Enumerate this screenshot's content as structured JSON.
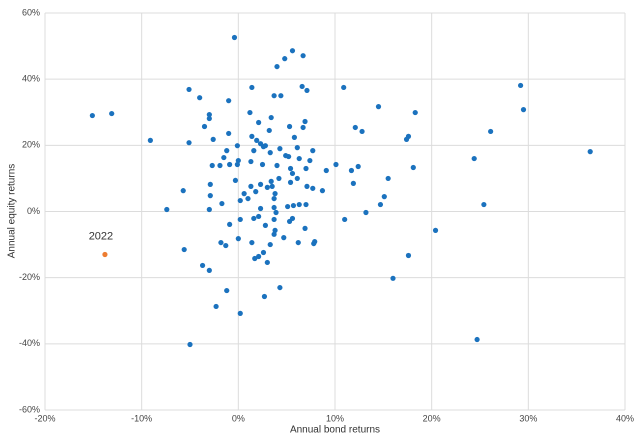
{
  "chart_data": {
    "type": "scatter",
    "x_label": "Annual bond returns",
    "y_label": "Annual equity returns",
    "xlim": [
      -20,
      40
    ],
    "ylim": [
      -60,
      60
    ],
    "xticks": [
      {
        "value": -20,
        "label": "-20%"
      },
      {
        "value": -10,
        "label": "-10%"
      },
      {
        "value": 0,
        "label": "0%"
      },
      {
        "value": 10,
        "label": "10%"
      },
      {
        "value": 20,
        "label": "20%"
      },
      {
        "value": 30,
        "label": "30%"
      },
      {
        "value": 40,
        "label": "40%"
      }
    ],
    "yticks": [
      {
        "value": -60,
        "label": "-60%"
      },
      {
        "value": -40,
        "label": "-40%"
      },
      {
        "value": -20,
        "label": "-20%"
      },
      {
        "value": 0,
        "label": "0%"
      },
      {
        "value": 20,
        "label": "20%"
      },
      {
        "value": 40,
        "label": "40%"
      },
      {
        "value": 60,
        "label": "60%"
      }
    ],
    "grid": true,
    "series": [
      {
        "color": "#1b72be",
        "x": [
          -15.1,
          -13.1,
          -9.1,
          -7.4,
          -5.6,
          -5.7,
          -5.1,
          -5.1,
          -5.0,
          -0.4,
          5.6,
          6.7,
          4.8,
          4.0,
          10.9,
          6.6,
          7.1,
          1.4,
          4.4,
          3.7,
          -4.0,
          -1.0,
          14.5,
          29.2,
          29.5,
          18.3,
          1.2,
          -3.0,
          -3.0,
          3.4,
          2.1,
          6.9,
          6.7,
          5.3,
          -3.5,
          12.1,
          12.8,
          26.1,
          3.2,
          -1.0,
          1.4,
          1.9,
          -2.6,
          5.8,
          17.6,
          17.4,
          2.6,
          2.3,
          2.8,
          -0.1,
          4.3,
          6.1,
          7.7,
          36.4,
          -1.2,
          1.6,
          -1.5,
          4.9,
          5.2,
          6.3,
          24.4,
          3.3,
          1.3,
          0.0,
          -0.1,
          -2.7,
          -1.9,
          -0.9,
          10.1,
          12.4,
          18.1,
          2.5,
          7.4,
          4.0,
          5.4,
          7.0,
          5.6,
          4.2,
          6.1,
          9.1,
          11.7,
          5.4,
          -0.3,
          3.4,
          15.5,
          11.9,
          -2.9,
          2.3,
          1.3,
          3.0,
          7.1,
          8.7,
          7.7,
          3.5,
          1.8,
          0.6,
          -2.9,
          1.0,
          3.8,
          3.7,
          0.2,
          -1.7,
          14.7,
          25.4,
          15.1,
          5.7,
          6.3,
          5.1,
          3.7,
          7.0,
          2.3,
          3.9,
          -3.0,
          13.2,
          2.1,
          5.6,
          5.3,
          11.0,
          0.2,
          3.7,
          -0.9,
          1.6,
          2.8,
          6.9,
          20.4,
          3.8,
          3.7,
          4.7,
          0.0,
          7.9,
          7.8,
          6.2,
          1.4,
          -1.8,
          -1.3,
          3.3,
          2.6,
          2.1,
          1.7,
          17.6,
          3.0,
          -3.7,
          -3.0,
          16.0,
          4.3,
          -1.2,
          2.7,
          -2.3,
          0.2,
          24.7
        ],
        "y": [
          29.0,
          29.6,
          21.5,
          0.6,
          -11.5,
          6.3,
          36.9,
          20.8,
          -40.2,
          52.6,
          48.6,
          47.1,
          46.2,
          43.8,
          37.5,
          37.8,
          36.6,
          37.5,
          35.0,
          35.0,
          34.4,
          33.5,
          31.7,
          38.1,
          30.8,
          29.9,
          29.9,
          29.3,
          28.1,
          28.4,
          26.9,
          27.2,
          25.4,
          25.7,
          25.7,
          25.4,
          24.2,
          24.2,
          24.5,
          23.6,
          22.7,
          21.5,
          21.8,
          22.4,
          22.7,
          21.8,
          19.6,
          20.5,
          19.9,
          19.9,
          19.0,
          19.3,
          18.4,
          18.1,
          18.4,
          18.4,
          16.3,
          16.9,
          16.6,
          16.0,
          16.0,
          17.8,
          15.1,
          15.4,
          14.2,
          13.9,
          13.9,
          14.2,
          14.2,
          13.6,
          13.3,
          14.2,
          15.4,
          13.9,
          13.0,
          13.0,
          11.5,
          10.0,
          10.0,
          12.4,
          12.4,
          8.8,
          9.4,
          9.1,
          10.0,
          8.5,
          8.2,
          8.2,
          7.6,
          7.3,
          7.6,
          6.3,
          7.0,
          7.6,
          6.0,
          5.4,
          4.8,
          3.9,
          5.4,
          3.9,
          3.3,
          2.4,
          2.1,
          2.1,
          4.5,
          1.8,
          2.1,
          1.5,
          1.2,
          2.1,
          0.9,
          -0.3,
          0.6,
          -0.3,
          -1.5,
          -2.1,
          -3.0,
          -2.4,
          -2.4,
          -2.4,
          -3.9,
          -2.1,
          -4.2,
          -5.1,
          -5.7,
          -5.7,
          -6.9,
          -7.9,
          -8.2,
          -9.1,
          -9.7,
          -9.4,
          -9.4,
          -9.4,
          -10.3,
          -10.0,
          -12.4,
          -13.6,
          -14.2,
          -13.3,
          -15.4,
          -16.3,
          -17.8,
          -20.2,
          -23.0,
          -23.9,
          -25.7,
          -28.7,
          -30.8,
          -38.7
        ]
      },
      {
        "name": "2022",
        "color": "#ed7d31",
        "x": [
          -13.8
        ],
        "y": [
          -13.0
        ]
      }
    ]
  }
}
